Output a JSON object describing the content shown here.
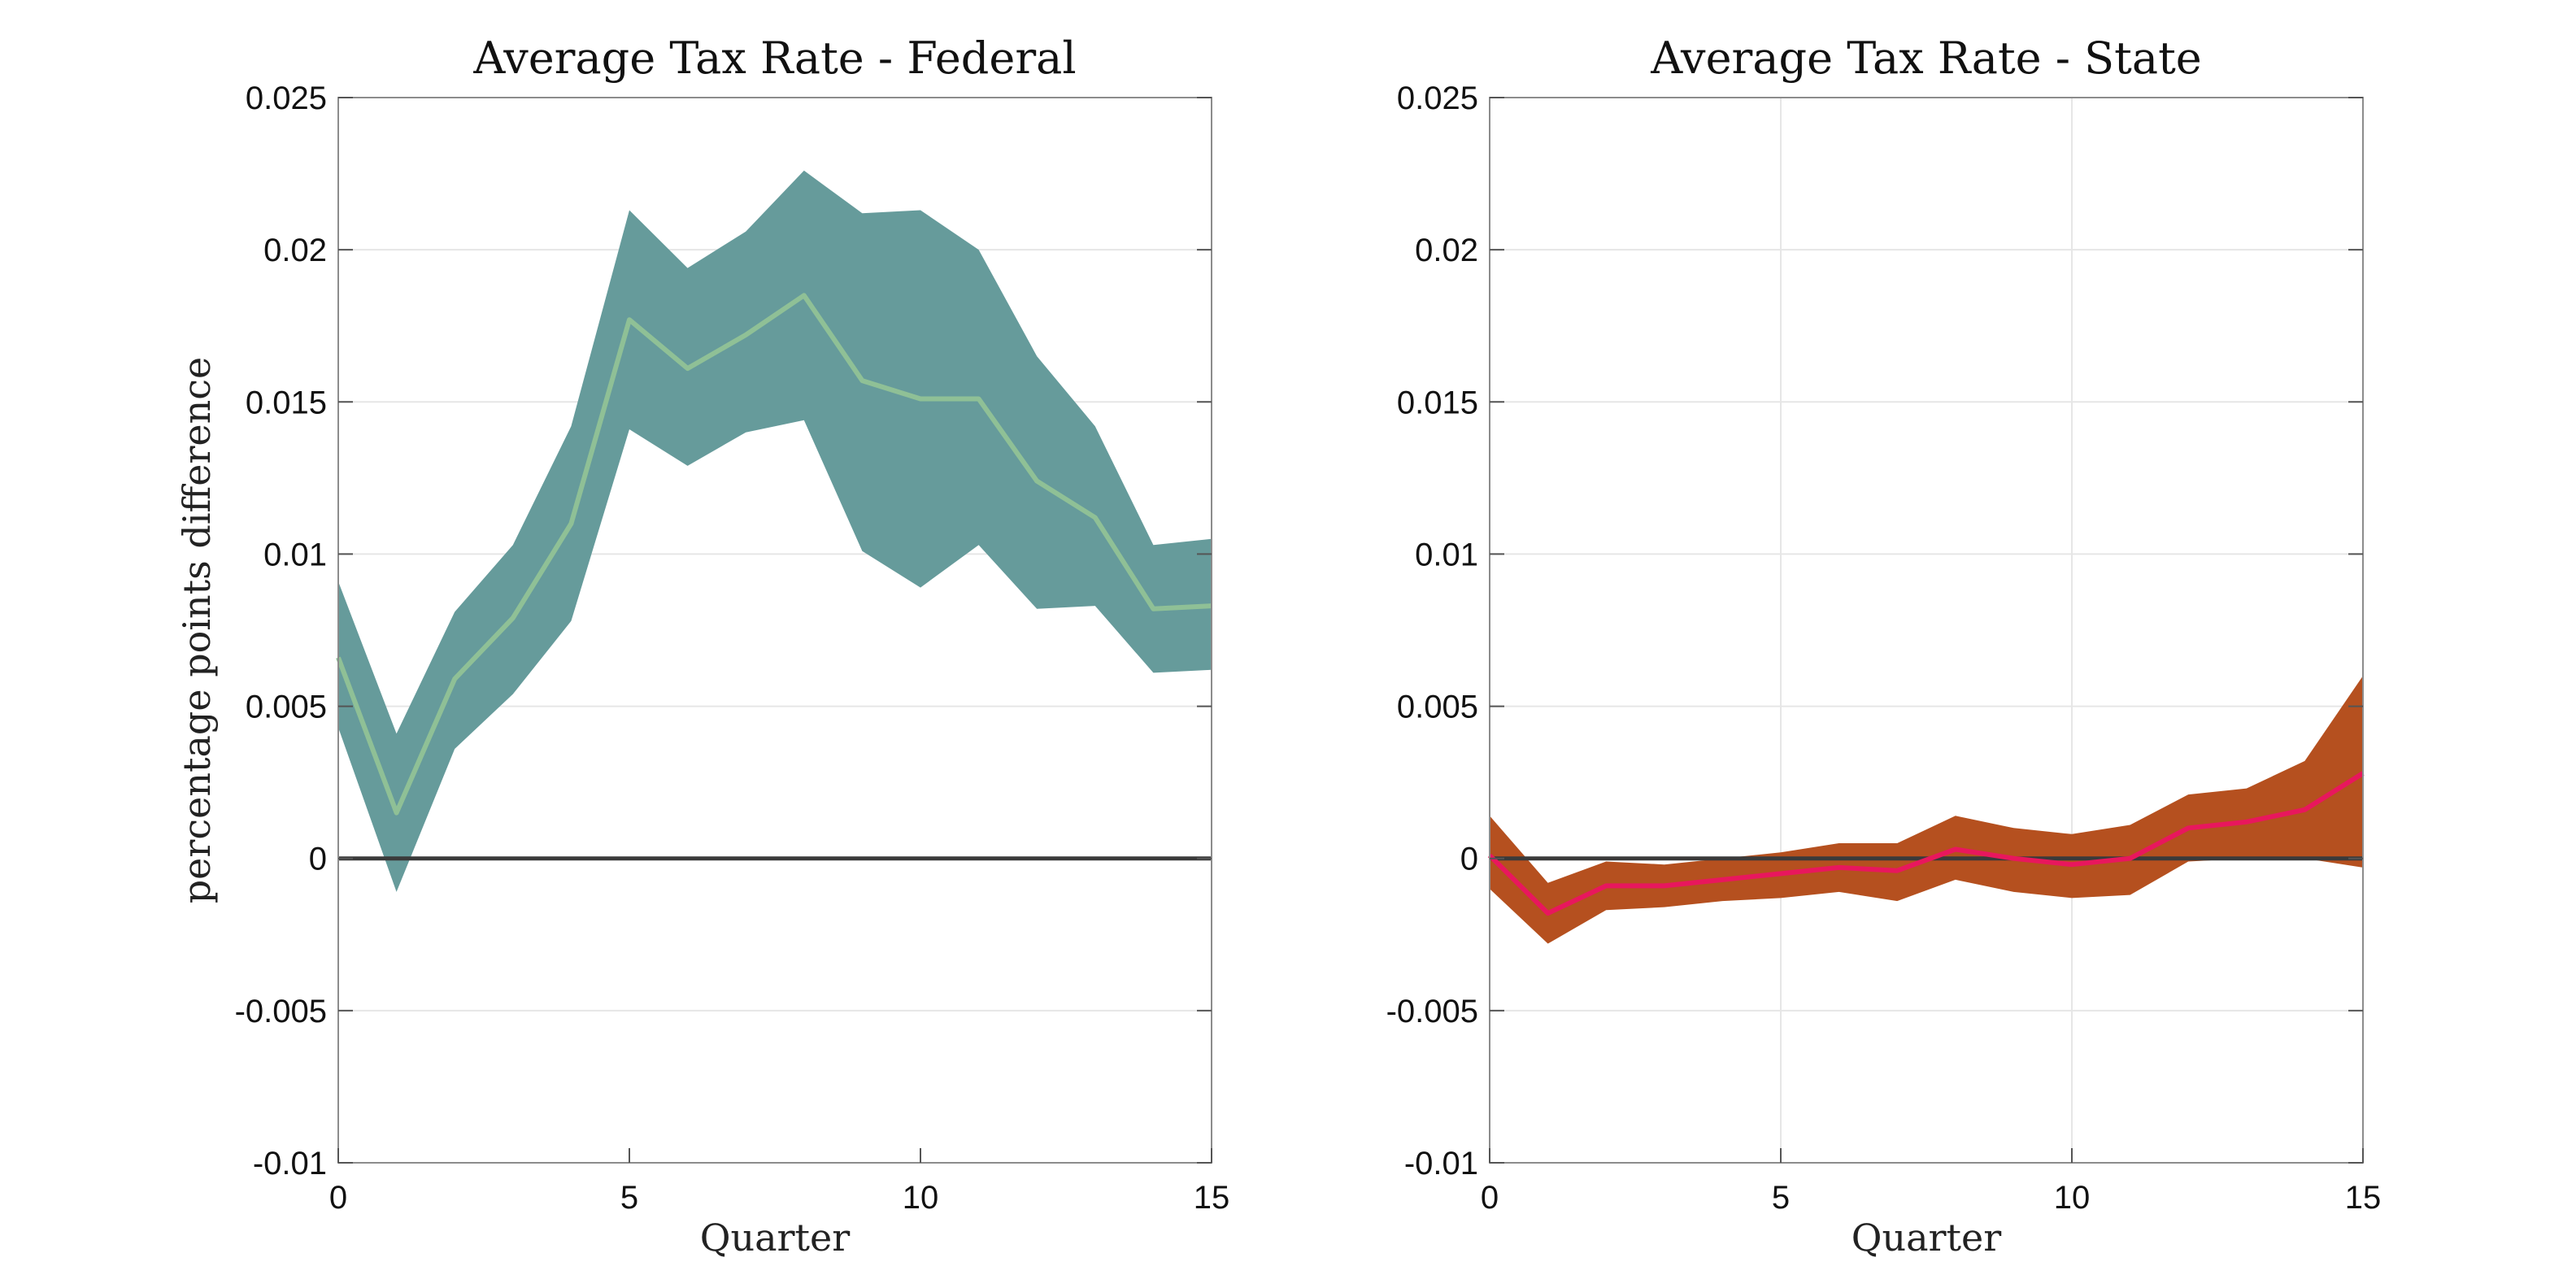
{
  "chart_data": [
    {
      "type": "area",
      "title": "Average Tax Rate - Federal",
      "xlabel": "Quarter",
      "ylabel": "percentage points difference",
      "xlim": [
        0,
        15
      ],
      "ylim": [
        -0.01,
        0.025
      ],
      "xticks": [
        0,
        5,
        10,
        15
      ],
      "xtick_labels": [
        "0",
        "5",
        "10",
        "15"
      ],
      "yticks": [
        -0.01,
        -0.005,
        0,
        0.005,
        0.01,
        0.015,
        0.02,
        0.025
      ],
      "ytick_labels": [
        "-0.01",
        "-0.005",
        "0",
        "0.005",
        "0.01",
        "0.015",
        "0.02",
        "0.025"
      ],
      "grid": "horizontal",
      "zero_line": true,
      "band_color": "#669b9b",
      "line_color": "#8fc096",
      "x": [
        0,
        1,
        2,
        3,
        4,
        5,
        6,
        7,
        8,
        9,
        10,
        11,
        12,
        13,
        14,
        15
      ],
      "series": [
        {
          "role": "upper",
          "values": [
            0.0091,
            0.0041,
            0.0081,
            0.0103,
            0.0142,
            0.0213,
            0.0194,
            0.0206,
            0.0226,
            0.0212,
            0.0213,
            0.02,
            0.0165,
            0.0142,
            0.0103,
            0.0105
          ]
        },
        {
          "role": "lower",
          "values": [
            0.0043,
            -0.0011,
            0.0036,
            0.0054,
            0.0078,
            0.0141,
            0.0129,
            0.014,
            0.0144,
            0.0101,
            0.0089,
            0.0103,
            0.0082,
            0.0083,
            0.0061,
            0.0062
          ]
        },
        {
          "role": "estimate",
          "values": [
            0.0066,
            0.0015,
            0.0059,
            0.0079,
            0.011,
            0.0177,
            0.0161,
            0.0172,
            0.0185,
            0.0157,
            0.0151,
            0.0151,
            0.0124,
            0.0112,
            0.0082,
            0.0083
          ]
        }
      ]
    },
    {
      "type": "area",
      "title": "Average Tax Rate - State",
      "xlabel": "Quarter",
      "ylabel": "",
      "xlim": [
        0,
        15
      ],
      "ylim": [
        -0.01,
        0.025
      ],
      "xticks": [
        0,
        5,
        10,
        15
      ],
      "xtick_labels": [
        "0",
        "5",
        "10",
        "15"
      ],
      "yticks": [
        -0.01,
        -0.005,
        0,
        0.005,
        0.01,
        0.015,
        0.02,
        0.025
      ],
      "ytick_labels": [
        "-0.01",
        "-0.005",
        "0",
        "0.005",
        "0.01",
        "0.015",
        "0.02",
        "0.025"
      ],
      "grid": "both",
      "zero_line": true,
      "band_color": "#b5501f",
      "line_color": "#e8175d",
      "x": [
        0,
        1,
        2,
        3,
        4,
        5,
        6,
        7,
        8,
        9,
        10,
        11,
        12,
        13,
        14,
        15
      ],
      "series": [
        {
          "role": "upper",
          "values": [
            0.0014,
            -0.0008,
            -0.0001,
            -0.0002,
            0.0,
            0.0002,
            0.0005,
            0.0005,
            0.0014,
            0.001,
            0.0008,
            0.0011,
            0.0021,
            0.0023,
            0.0032,
            0.006
          ]
        },
        {
          "role": "lower",
          "values": [
            -0.001,
            -0.0028,
            -0.0017,
            -0.0016,
            -0.0014,
            -0.0013,
            -0.0011,
            -0.0014,
            -0.0007,
            -0.0011,
            -0.0013,
            -0.0012,
            -0.0001,
            0.0,
            0.0,
            -0.0003
          ]
        },
        {
          "role": "estimate",
          "values": [
            0.0001,
            -0.0018,
            -0.0009,
            -0.0009,
            -0.0007,
            -0.0005,
            -0.0003,
            -0.0004,
            0.0003,
            0.0,
            -0.0002,
            0.0,
            0.001,
            0.0012,
            0.0016,
            0.0028
          ]
        }
      ]
    }
  ]
}
